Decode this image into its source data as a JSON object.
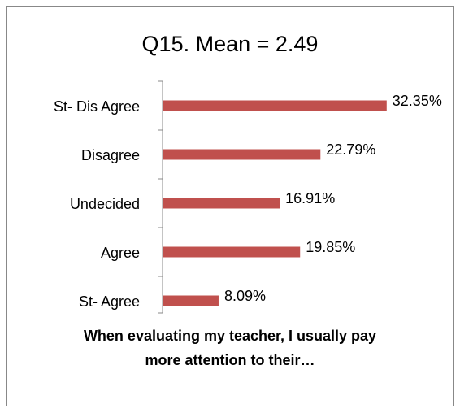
{
  "chart_data": {
    "type": "barh",
    "title": "Q15. Mean = 2.49",
    "categories": [
      "St- Dis Agree",
      "Disagree",
      "Undecided",
      "Agree",
      "St- Agree"
    ],
    "values": [
      32.35,
      22.79,
      16.91,
      19.85,
      8.09
    ],
    "value_labels": [
      "32.35%",
      "22.79%",
      "16.91%",
      "19.85%",
      "8.09%"
    ],
    "color": "#c0504d",
    "xlim": [
      0,
      40
    ],
    "xlabel": "When evaluating my teacher, I usually pay more attention to their…"
  }
}
